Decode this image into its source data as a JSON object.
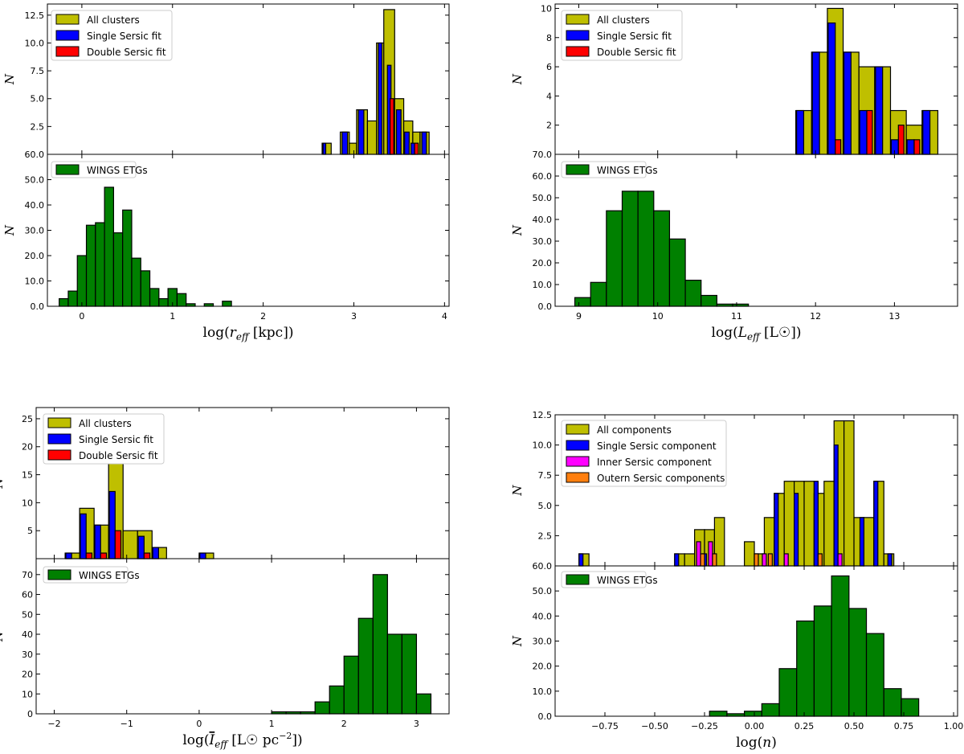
{
  "colors": {
    "all": "#bfbf00",
    "single": "#0000ff",
    "double": "#ff0000",
    "inner": "#ff00ff",
    "outer": "#ff7f0e",
    "wings": "#008000"
  },
  "chart_data": [
    {
      "type": "bar",
      "panel_pair": "r_eff",
      "top": {
        "ylabel": "N",
        "ylim": [
          0,
          13.5
        ],
        "yticks": [
          2.5,
          5.0,
          7.5,
          10.0,
          12.5
        ],
        "ytick_labels": [
          "2.5",
          "5.0",
          "7.5",
          "10.0",
          "12.5"
        ],
        "legend": [
          "All clusters",
          "Single Sersic fit",
          "Double Sersic fit"
        ],
        "series": [
          {
            "name": "All clusters",
            "color_key": "all",
            "bins": [
              [
                2.65,
                2.75,
                1
              ],
              [
                2.85,
                2.95,
                2
              ],
              [
                2.95,
                3.03,
                1
              ],
              [
                3.03,
                3.15,
                4
              ],
              [
                3.15,
                3.25,
                3
              ],
              [
                3.25,
                3.33,
                10
              ],
              [
                3.33,
                3.45,
                13
              ],
              [
                3.45,
                3.55,
                5
              ],
              [
                3.55,
                3.65,
                3
              ],
              [
                3.65,
                3.73,
                2
              ],
              [
                3.73,
                3.83,
                2
              ]
            ]
          },
          {
            "name": "Single Sersic fit",
            "color_key": "single",
            "bins": [
              [
                2.66,
                2.69,
                1
              ],
              [
                2.87,
                2.93,
                2
              ],
              [
                3.05,
                3.11,
                4
              ],
              [
                3.27,
                3.31,
                10
              ],
              [
                3.37,
                3.41,
                8
              ],
              [
                3.47,
                3.52,
                4
              ],
              [
                3.56,
                3.61,
                2
              ],
              [
                3.63,
                3.67,
                1
              ],
              [
                3.75,
                3.8,
                2
              ]
            ]
          },
          {
            "name": "Double Sersic fit",
            "color_key": "double",
            "bins": [
              [
                3.4,
                3.44,
                5
              ],
              [
                3.67,
                3.71,
                1
              ]
            ]
          }
        ]
      },
      "bottom": {
        "xlabel": "log(r_eff [kpc])",
        "xlabel_base": "log(",
        "xlabel_var": "r",
        "xlabel_sub": "eff",
        "xlabel_unit": " [kpc])",
        "ylabel": "N",
        "xlim": [
          -0.38,
          4.05
        ],
        "ylim": [
          0,
          60.0
        ],
        "xticks": [
          0,
          1,
          2,
          3,
          4
        ],
        "xtick_labels": [
          "0",
          "1",
          "2",
          "3",
          "4"
        ],
        "yticks": [
          0.0,
          10.0,
          20.0,
          30.0,
          40.0,
          50.0,
          60.0
        ],
        "ytick_labels": [
          "0.0",
          "10.0",
          "20.0",
          "30.0",
          "40.0",
          "50.0",
          "60.0"
        ],
        "legend": [
          "WINGS ETGs"
        ],
        "series": [
          {
            "name": "WINGS ETGs",
            "color_key": "wings",
            "start": -0.25,
            "width": 0.1,
            "values": [
              3,
              6,
              20,
              32,
              33,
              47,
              29,
              38,
              19,
              14,
              7,
              3,
              7,
              5,
              1,
              0,
              1,
              0,
              0,
              0,
              0
            ]
          },
          {
            "name": "WINGS ETGs (outlier)",
            "color_key": "wings",
            "start": 1.55,
            "width": 0.1,
            "values": [
              2
            ]
          }
        ]
      }
    },
    {
      "type": "bar",
      "panel_pair": "L_eff",
      "top": {
        "ylabel": "N",
        "ylim": [
          0,
          10.3
        ],
        "yticks": [
          2,
          4,
          6,
          8,
          10
        ],
        "ytick_labels": [
          "2",
          "4",
          "6",
          "8",
          "10"
        ],
        "legend": [
          "All clusters",
          "Single Sersic fit",
          "Double Sersic fit"
        ],
        "series": [
          {
            "name": "All clusters",
            "color_key": "all",
            "bins": [
              [
                11.75,
                11.95,
                3
              ],
              [
                11.95,
                12.15,
                7
              ],
              [
                12.15,
                12.35,
                10
              ],
              [
                12.35,
                12.55,
                7
              ],
              [
                12.55,
                12.75,
                6
              ],
              [
                12.75,
                12.95,
                6
              ],
              [
                12.95,
                13.15,
                3
              ],
              [
                13.15,
                13.35,
                2
              ],
              [
                13.35,
                13.55,
                3
              ]
            ]
          },
          {
            "name": "Single Sersic fit",
            "color_key": "single",
            "bins": [
              [
                11.76,
                11.85,
                3
              ],
              [
                11.96,
                12.05,
                7
              ],
              [
                12.16,
                12.25,
                9
              ],
              [
                12.36,
                12.45,
                7
              ],
              [
                12.56,
                12.65,
                3
              ],
              [
                12.76,
                12.85,
                6
              ],
              [
                12.96,
                13.05,
                1
              ],
              [
                13.16,
                13.25,
                1
              ],
              [
                13.36,
                13.45,
                3
              ]
            ]
          },
          {
            "name": "Double Sersic fit",
            "color_key": "double",
            "bins": [
              [
                12.25,
                12.32,
                1
              ],
              [
                12.65,
                12.72,
                3
              ],
              [
                13.05,
                13.12,
                2
              ],
              [
                13.25,
                13.32,
                1
              ]
            ]
          }
        ]
      },
      "bottom": {
        "xlabel": "log(L_eff [L☉])",
        "xlabel_base": "log(",
        "xlabel_var": "L",
        "xlabel_sub": "eff",
        "xlabel_unit": " [L☉])",
        "ylabel": "N",
        "xlim": [
          8.7,
          13.8
        ],
        "ylim": [
          0,
          70.0
        ],
        "xticks": [
          9,
          10,
          11,
          12,
          13
        ],
        "xtick_labels": [
          "9",
          "10",
          "11",
          "12",
          "13"
        ],
        "yticks": [
          0.0,
          10.0,
          20.0,
          30.0,
          40.0,
          50.0,
          60.0,
          70.0
        ],
        "ytick_labels": [
          "0.0",
          "10.0",
          "20.0",
          "30.0",
          "40.0",
          "50.0",
          "60.0",
          "70.0"
        ],
        "legend": [
          "WINGS ETGs"
        ],
        "series": [
          {
            "name": "WINGS ETGs",
            "color_key": "wings",
            "start": 8.95,
            "width": 0.2,
            "values": [
              4,
              11,
              44,
              53,
              53,
              44,
              31,
              12,
              5,
              1,
              1
            ]
          }
        ]
      }
    },
    {
      "type": "bar",
      "panel_pair": "I_eff",
      "top": {
        "ylabel": "N",
        "ylim": [
          0,
          27
        ],
        "yticks": [
          5,
          10,
          15,
          20,
          25
        ],
        "ytick_labels": [
          "5",
          "10",
          "15",
          "20",
          "25"
        ],
        "legend": [
          "All clusters",
          "Single Sersic fit",
          "Double Sersic fit"
        ],
        "series": [
          {
            "name": "All clusters",
            "color_key": "all",
            "bins": [
              [
                -1.85,
                -1.65,
                1
              ],
              [
                -1.65,
                -1.45,
                9
              ],
              [
                -1.45,
                -1.25,
                6
              ],
              [
                -1.25,
                -1.05,
                17
              ],
              [
                -1.05,
                -0.85,
                5
              ],
              [
                -0.85,
                -0.65,
                5
              ],
              [
                -0.65,
                -0.45,
                2
              ],
              [
                0.0,
                0.2,
                1
              ]
            ]
          },
          {
            "name": "Single Sersic fit",
            "color_key": "single",
            "bins": [
              [
                -1.84,
                -1.76,
                1
              ],
              [
                -1.64,
                -1.56,
                8
              ],
              [
                -1.44,
                -1.36,
                6
              ],
              [
                -1.24,
                -1.16,
                12
              ],
              [
                -0.84,
                -0.76,
                4
              ],
              [
                -0.64,
                -0.56,
                2
              ],
              [
                0.01,
                0.09,
                1
              ]
            ]
          },
          {
            "name": "Double Sersic fit",
            "color_key": "double",
            "bins": [
              [
                -1.56,
                -1.48,
                1
              ],
              [
                -1.36,
                -1.28,
                1
              ],
              [
                -1.16,
                -1.08,
                5
              ],
              [
                -0.76,
                -0.68,
                1
              ]
            ]
          }
        ]
      },
      "bottom": {
        "xlabel": "log(I_eff [L☉ pc⁻²])",
        "xlabel_base": "log(",
        "xlabel_var": "I",
        "xlabel_sub": "eff",
        "xlabel_unit": " [L☉ pc",
        "xlabel_sup": "−2",
        "xlabel_tail": "])",
        "ylabel": "N",
        "xlim": [
          -2.25,
          3.45
        ],
        "ylim": [
          0,
          78
        ],
        "xticks": [
          -2,
          -1,
          0,
          1,
          2,
          3
        ],
        "xtick_labels": [
          "−2",
          "−1",
          "0",
          "1",
          "2",
          "3"
        ],
        "yticks": [
          0,
          10,
          20,
          30,
          40,
          50,
          60,
          70
        ],
        "ytick_labels": [
          "0",
          "10",
          "20",
          "30",
          "40",
          "50",
          "60",
          "70"
        ],
        "legend": [
          "WINGS ETGs"
        ],
        "series": [
          {
            "name": "WINGS ETGs",
            "color_key": "wings",
            "start": 1.0,
            "width": 0.2,
            "values": [
              1,
              1,
              1,
              6,
              14,
              29,
              48,
              70,
              40,
              40,
              10
            ]
          }
        ]
      }
    },
    {
      "type": "bar",
      "panel_pair": "n",
      "top": {
        "ylabel": "N",
        "ylim": [
          0,
          12.5
        ],
        "yticks": [
          2.5,
          5.0,
          7.5,
          10.0,
          12.5
        ],
        "ytick_labels": [
          "2.5",
          "5.0",
          "7.5",
          "10.0",
          "12.5"
        ],
        "legend": [
          "All components",
          "Single Sersic component",
          "Inner Sersic component",
          "Outern Sersic components"
        ],
        "series": [
          {
            "name": "All components",
            "color_key": "all",
            "bins": [
              [
                -0.88,
                -0.83,
                1
              ],
              [
                -0.4,
                -0.35,
                1
              ],
              [
                -0.35,
                -0.3,
                1
              ],
              [
                -0.3,
                -0.25,
                3
              ],
              [
                -0.25,
                -0.2,
                3
              ],
              [
                -0.2,
                -0.15,
                4
              ],
              [
                -0.05,
                0.0,
                2
              ],
              [
                0.0,
                0.05,
                1
              ],
              [
                0.05,
                0.1,
                4
              ],
              [
                0.1,
                0.15,
                6
              ],
              [
                0.15,
                0.2,
                7
              ],
              [
                0.2,
                0.25,
                7
              ],
              [
                0.25,
                0.3,
                7
              ],
              [
                0.3,
                0.35,
                6
              ],
              [
                0.35,
                0.4,
                7
              ],
              [
                0.4,
                0.45,
                12
              ],
              [
                0.45,
                0.5,
                12
              ],
              [
                0.5,
                0.55,
                4
              ],
              [
                0.55,
                0.6,
                4
              ],
              [
                0.6,
                0.65,
                7
              ],
              [
                0.65,
                0.7,
                1
              ]
            ]
          },
          {
            "name": "Single Sersic component",
            "color_key": "single",
            "bins": [
              [
                -0.88,
                -0.86,
                1
              ],
              [
                -0.4,
                -0.38,
                1
              ],
              [
                -0.26,
                -0.24,
                1
              ],
              [
                0.1,
                0.12,
                6
              ],
              [
                0.2,
                0.22,
                6
              ],
              [
                0.3,
                0.32,
                7
              ],
              [
                0.4,
                0.42,
                10
              ],
              [
                0.53,
                0.55,
                4
              ],
              [
                0.6,
                0.62,
                7
              ],
              [
                0.67,
                0.69,
                1
              ]
            ]
          },
          {
            "name": "Inner Sersic component",
            "color_key": "inner",
            "bins": [
              [
                -0.29,
                -0.27,
                2
              ],
              [
                -0.23,
                -0.21,
                2
              ],
              [
                0.04,
                0.06,
                1
              ],
              [
                0.15,
                0.17,
                1
              ],
              [
                0.42,
                0.44,
                1
              ]
            ]
          },
          {
            "name": "Outern Sersic components",
            "color_key": "outer",
            "bins": [
              [
                -0.27,
                -0.25,
                1
              ],
              [
                -0.21,
                -0.19,
                1
              ],
              [
                0.0,
                0.02,
                1
              ],
              [
                0.07,
                0.09,
                1
              ],
              [
                0.32,
                0.34,
                1
              ]
            ]
          }
        ]
      },
      "bottom": {
        "xlabel": "log(n)",
        "xlabel_base": "log(",
        "xlabel_var": "n",
        "xlabel_sub": "",
        "xlabel_unit": ")",
        "ylabel": "N",
        "xlim": [
          -1.0,
          1.02
        ],
        "ylim": [
          0,
          60.0
        ],
        "xticks": [
          -0.75,
          -0.5,
          -0.25,
          0.0,
          0.25,
          0.5,
          0.75,
          1.0
        ],
        "xtick_labels": [
          "−0.75",
          "−0.50",
          "−0.25",
          "0.00",
          "0.25",
          "0.50",
          "0.75",
          "1.00"
        ],
        "yticks": [
          0.0,
          10.0,
          20.0,
          30.0,
          40.0,
          50.0,
          60.0
        ],
        "ytick_labels": [
          "0.0",
          "10.0",
          "20.0",
          "30.0",
          "40.0",
          "50.0",
          "60.0"
        ],
        "legend": [
          "WINGS ETGs"
        ],
        "series": [
          {
            "name": "WINGS ETGs",
            "color_key": "wings",
            "start": -0.225,
            "width": 0.0875,
            "values": [
              2,
              1,
              2,
              5,
              19,
              38,
              44,
              56,
              43,
              33,
              11,
              7
            ]
          }
        ]
      }
    }
  ]
}
